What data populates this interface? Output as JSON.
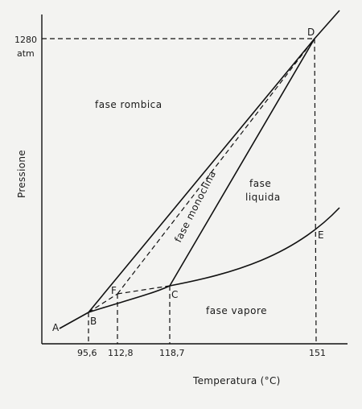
{
  "axes": {
    "y_label": "Pressione",
    "x_label": "Temperatura (°C)",
    "y_tick_value": "1280",
    "y_tick_unit": "atm",
    "x_ticks": [
      "95,6",
      "112,8",
      "118,7",
      "151"
    ]
  },
  "points": {
    "A": "A",
    "B": "B",
    "C": "C",
    "D": "D",
    "E": "E",
    "F": "F"
  },
  "regions": {
    "rhombic": "fase rombica",
    "monoclinic": "fase monoclina",
    "liquid_line1": "fase",
    "liquid_line2": "liquida",
    "vapour": "fase vapore"
  }
}
